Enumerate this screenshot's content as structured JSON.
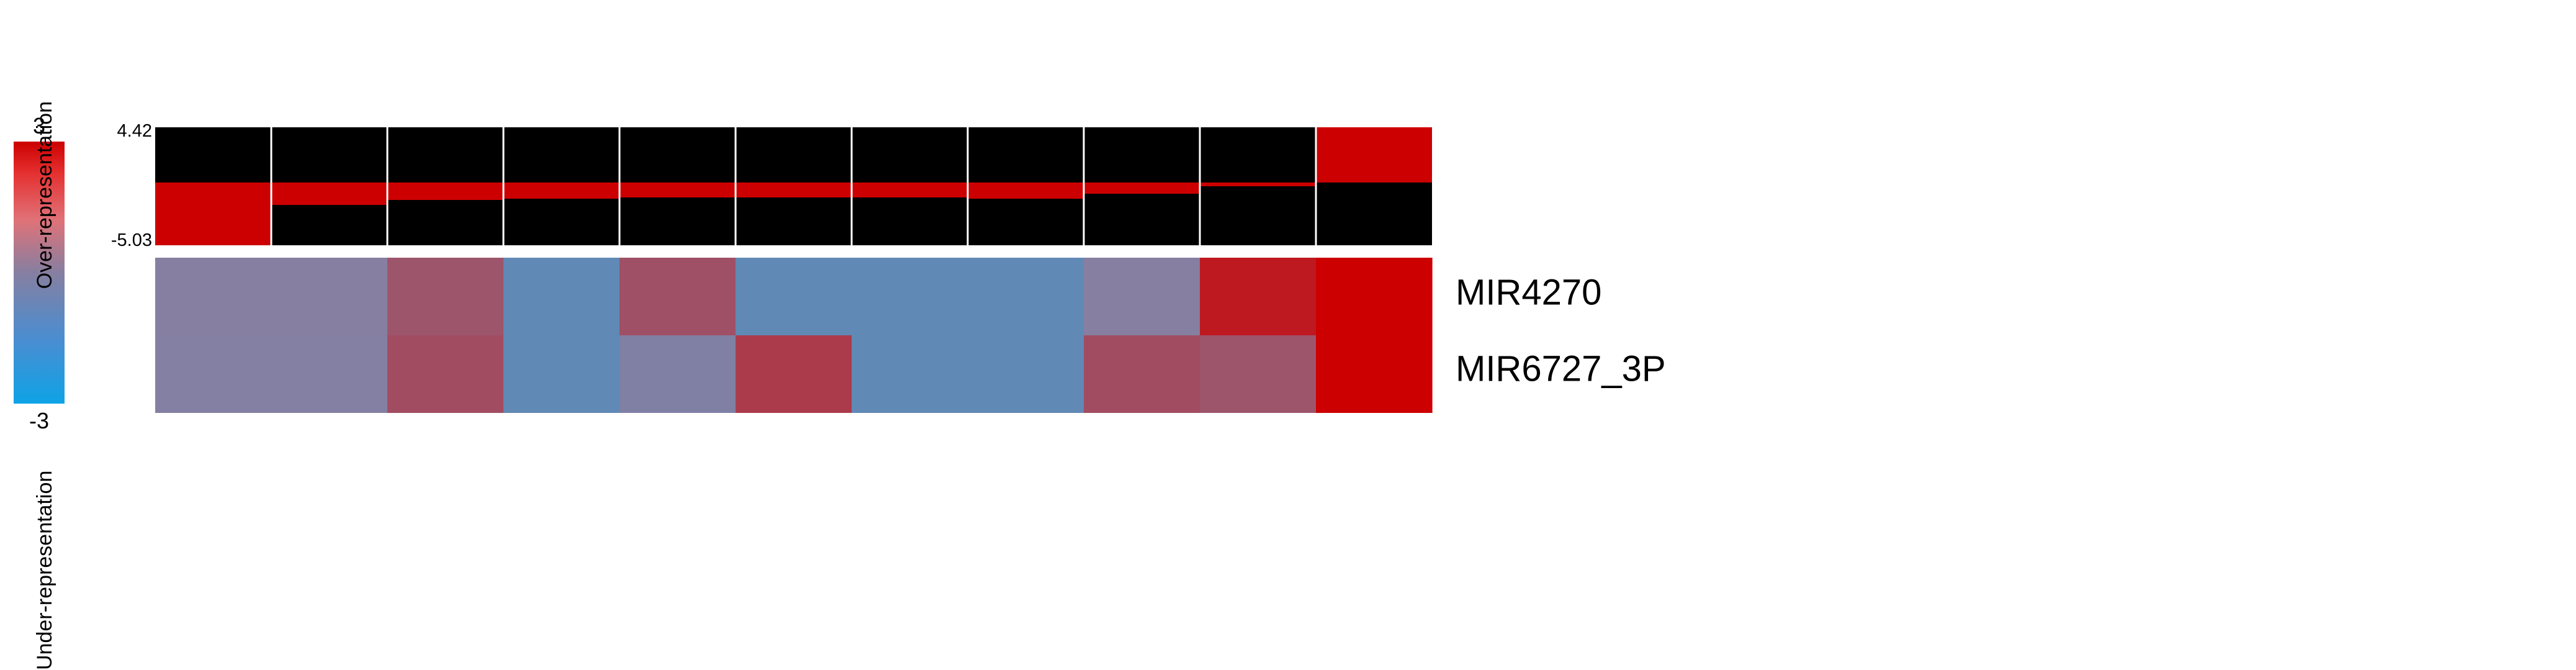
{
  "chart_data": {
    "type": "heatmap",
    "columns": 11,
    "rows": [
      "MIR4270",
      "MIR6727_3P"
    ],
    "values": [
      [
        0.0,
        0.0,
        1.0,
        -2.6,
        1.1,
        -2.6,
        -2.6,
        -2.6,
        0.0,
        2.4,
        3.0
      ],
      [
        -0.2,
        -0.2,
        1.2,
        -2.6,
        -0.4,
        1.6,
        -2.6,
        -2.6,
        1.2,
        1.0,
        3.0
      ]
    ],
    "colorbar": {
      "max_label": "3",
      "min_label": "-3",
      "range": [
        -3,
        3
      ],
      "high_color": "#cc0000",
      "mid_color": "#867fa1",
      "low_color": "#0ea3e6",
      "over_label": "Over-representation",
      "under_label": "Under-representation"
    },
    "top_panel": {
      "max_label": "4.42",
      "min_label": "-5.03",
      "range": [
        -5.03,
        4.42
      ],
      "values": [
        -5.03,
        -1.8,
        -1.4,
        -1.3,
        -1.2,
        -1.2,
        -1.2,
        -1.3,
        -0.9,
        -0.3,
        4.42
      ],
      "background_color": "#000000",
      "bar_color": "#cc0000"
    }
  }
}
